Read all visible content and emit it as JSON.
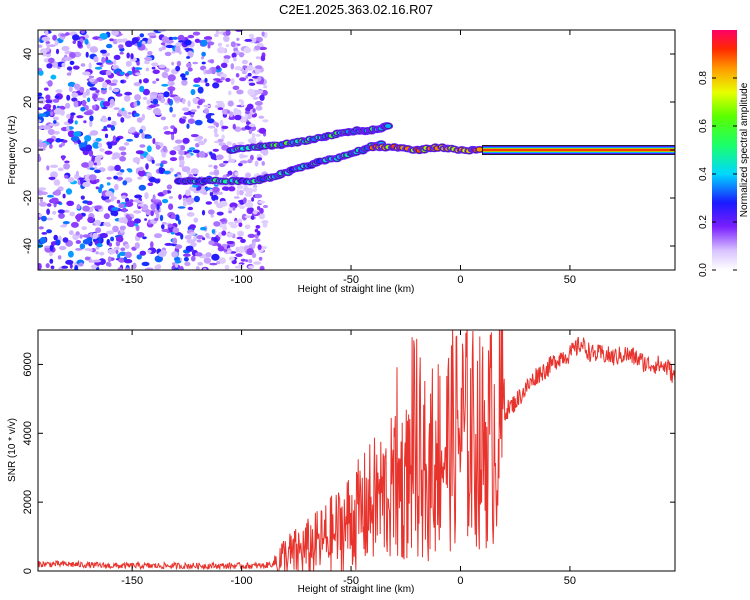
{
  "title": "C2E1.2025.363.02.16.R07",
  "chart_data": [
    {
      "type": "heatmap",
      "name": "spectrogram",
      "xlabel": "Height of straight line (km)",
      "ylabel": "Frequency (Hz)",
      "xlim": [
        -193,
        98
      ],
      "ylim": [
        -50,
        50
      ],
      "xticks": [
        -150,
        -100,
        -50,
        0,
        50
      ],
      "yticks": [
        -40,
        -20,
        0,
        20,
        40
      ],
      "colorbar": {
        "label": "Normalized spectral amplitude",
        "range": [
          0,
          1
        ],
        "ticks": [
          0.0,
          0.2,
          0.4,
          0.6,
          0.8
        ],
        "tick_labels": [
          "0.0",
          "0.2",
          "0.4",
          "0.6",
          "0.8"
        ]
      },
      "features": [
        {
          "name": "noise-field",
          "x_range": [
            -193,
            -92
          ],
          "y_range": [
            -50,
            50
          ],
          "amplitude": 0.3
        },
        {
          "name": "upper-branch",
          "points": [
            [
              -105,
              0
            ],
            [
              -95,
              1
            ],
            [
              -85,
              2
            ],
            [
              -75,
              3
            ],
            [
              -65,
              5
            ],
            [
              -55,
              7
            ],
            [
              -48,
              8
            ],
            [
              -42,
              8
            ],
            [
              -37,
              9
            ],
            [
              -33,
              10
            ]
          ],
          "amplitude": 0.45
        },
        {
          "name": "lower-branch",
          "points": [
            [
              -128,
              -13
            ],
            [
              -118,
              -13
            ],
            [
              -105,
              -13
            ],
            [
              -95,
              -13
            ],
            [
              -85,
              -11
            ],
            [
              -75,
              -8
            ],
            [
              -65,
              -5
            ],
            [
              -55,
              -3
            ],
            [
              -45,
              0
            ],
            [
              -35,
              3
            ]
          ],
          "amplitude": 0.4
        },
        {
          "name": "tone-segment",
          "points": [
            [
              -40,
              1
            ],
            [
              -30,
              1
            ],
            [
              -20,
              0
            ],
            [
              -10,
              1
            ],
            [
              0,
              0
            ],
            [
              10,
              0
            ]
          ],
          "amplitude": 0.8
        },
        {
          "name": "steady-tone",
          "x_range": [
            10,
            98
          ],
          "frequency": 0,
          "amplitude": 0.95
        }
      ]
    },
    {
      "type": "line",
      "name": "snr",
      "xlabel": "Height of straight line (km)",
      "ylabel": "SNR (10 * v/v)",
      "xlim": [
        -193,
        98
      ],
      "ylim": [
        0,
        7000
      ],
      "xticks": [
        -150,
        -100,
        -50,
        0,
        50
      ],
      "yticks": [
        0,
        2000,
        4000,
        6000
      ],
      "series": [
        {
          "name": "SNR",
          "color": "#e8322c",
          "x": [
            -193,
            -180,
            -160,
            -140,
            -120,
            -100,
            -90,
            -85,
            -80,
            -75,
            -70,
            -65,
            -60,
            -55,
            -50,
            -45,
            -40,
            -35,
            -30,
            -25,
            -20,
            -15,
            -10,
            -5,
            0,
            5,
            10,
            15,
            20,
            25,
            30,
            35,
            40,
            45,
            50,
            55,
            60,
            65,
            70,
            75,
            80,
            85,
            90,
            95,
            98
          ],
          "y": [
            200,
            200,
            150,
            150,
            150,
            150,
            150,
            220,
            400,
            500,
            650,
            800,
            1000,
            1200,
            1500,
            1700,
            2000,
            2200,
            2400,
            2600,
            3000,
            2500,
            3500,
            3700,
            4100,
            3900,
            3700,
            4000,
            4600,
            4900,
            5300,
            5700,
            5900,
            6200,
            6300,
            6600,
            6300,
            6300,
            6200,
            6300,
            6200,
            6000,
            6000,
            5900,
            5600
          ]
        }
      ]
    }
  ]
}
